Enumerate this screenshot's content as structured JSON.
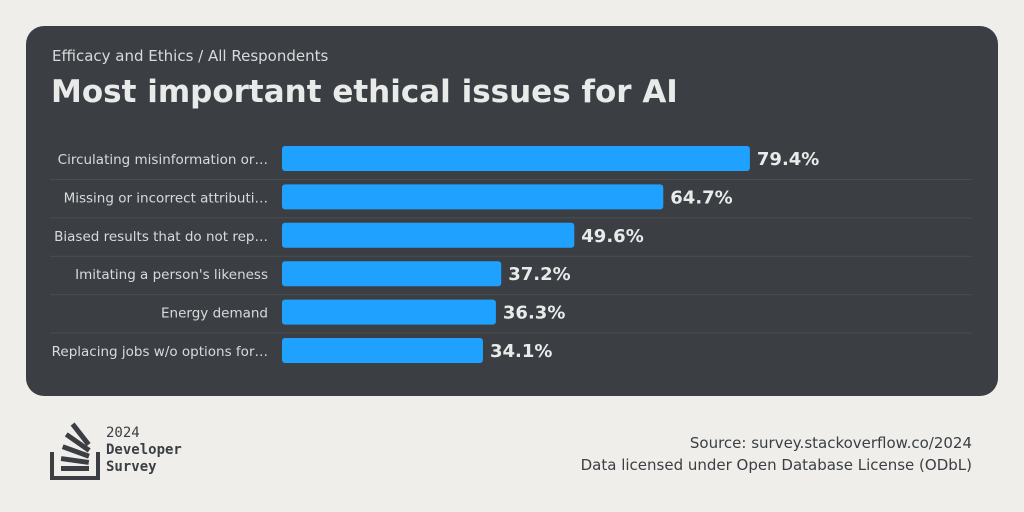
{
  "header": {
    "breadcrumb": "Efficacy and Ethics / All Respondents",
    "title": "Most important ethical issues for AI"
  },
  "colors": {
    "bar": "#1ea1ff",
    "card": "#3b3f43",
    "background": "#efeeea",
    "label": "#d9dadb",
    "value": "#e9eaea"
  },
  "chart_data": {
    "type": "bar",
    "orientation": "horizontal",
    "title": "Most important ethical issues for AI",
    "subtitle": "Efficacy and Ethics / All Respondents",
    "categories": [
      "Circulating misinformation or…",
      "Missing or incorrect attributi…",
      "Biased results that do not rep…",
      "Imitating a person's likeness",
      "Energy demand",
      "Replacing jobs w/o options for…"
    ],
    "values": [
      79.4,
      64.7,
      49.6,
      37.2,
      36.3,
      34.1
    ],
    "value_labels": [
      "79.4%",
      "64.7%",
      "49.6%",
      "37.2%",
      "36.3%",
      "34.1%"
    ],
    "unit": "%",
    "xlabel": "",
    "ylabel": "",
    "xlim": [
      0,
      100
    ],
    "grid": false
  },
  "footer": {
    "logo": {
      "icon": "stack-overflow-logo-icon",
      "line1": "2024",
      "line2": "Developer",
      "line3": "Survey"
    },
    "source": "Source: survey.stackoverflow.co/2024",
    "license": "Data licensed under Open Database License (ODbL)"
  }
}
